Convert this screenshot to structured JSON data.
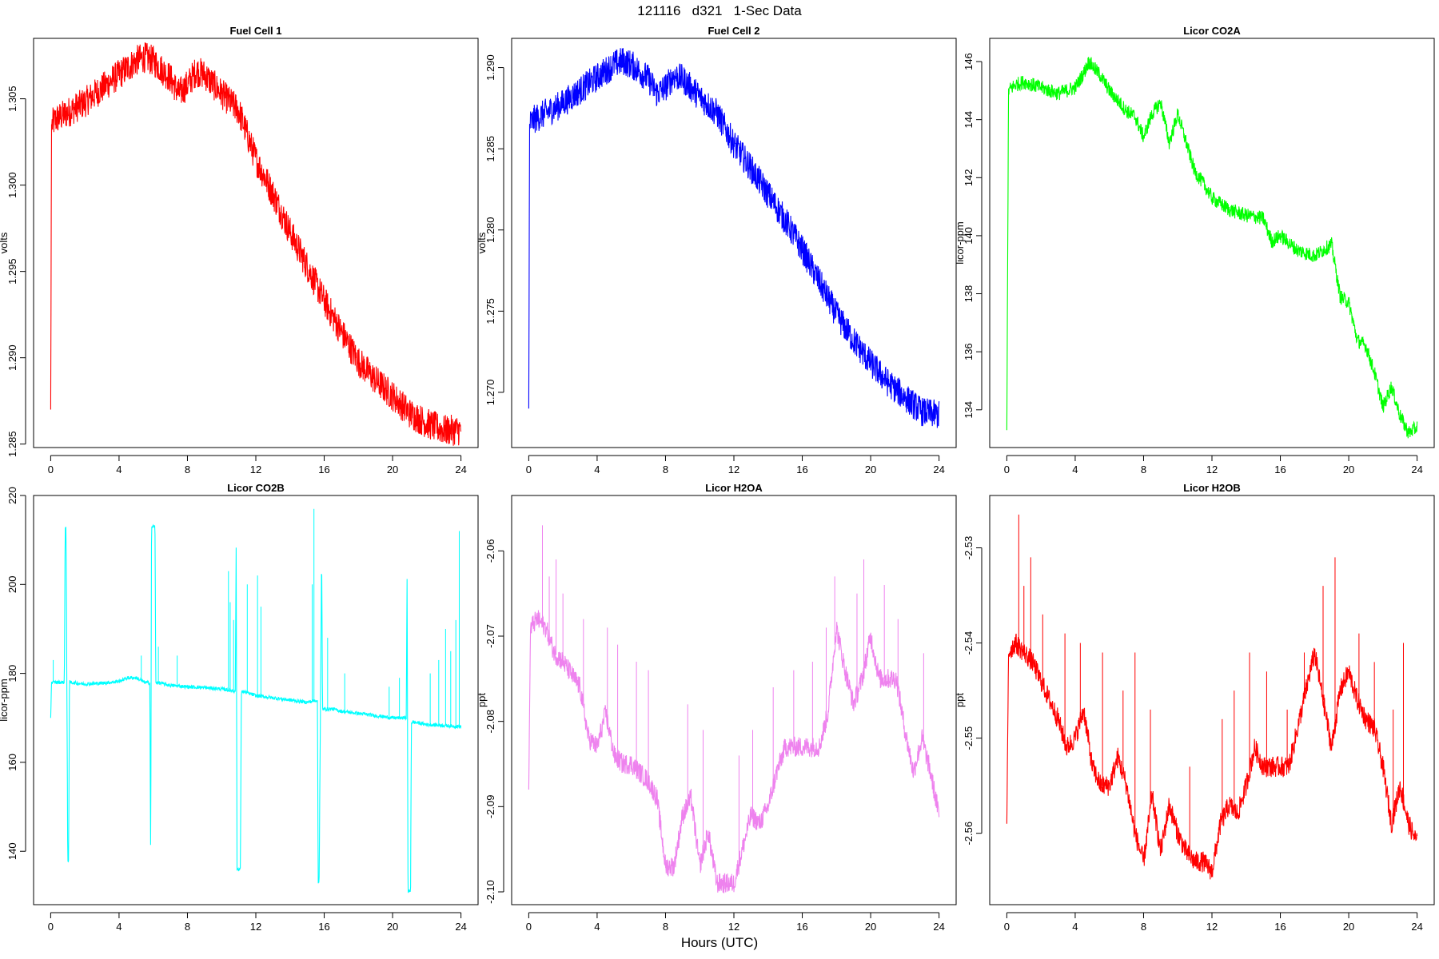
{
  "figure": {
    "title": "121116   d321   1-Sec Data",
    "xlabel": "Hours (UTC)"
  },
  "chart_data": [
    {
      "type": "line",
      "title": "Fuel Cell 1",
      "xlabel": "",
      "ylabel": "volts",
      "color": "#ff0000",
      "xlim": [
        -1,
        25
      ],
      "ylim": [
        1.2848,
        1.3085
      ],
      "xticks": [
        0,
        4,
        8,
        12,
        16,
        20,
        24
      ],
      "yticks": [
        1.285,
        1.29,
        1.295,
        1.3,
        1.305
      ],
      "ytick_labels": [
        "1.285",
        "1.290",
        "1.295",
        "1.300",
        "1.305"
      ],
      "noise": 0.0009,
      "series": [
        {
          "x": [
            0,
            0.05,
            0.3,
            1,
            2,
            3,
            4,
            5,
            5.5,
            6,
            7,
            7.5,
            8,
            8.5,
            9,
            10,
            11,
            12,
            13,
            14,
            15,
            16,
            17,
            18,
            19,
            20,
            21,
            22,
            23,
            24
          ],
          "y": [
            1.287,
            1.3035,
            1.3038,
            1.3042,
            1.3048,
            1.3056,
            1.3064,
            1.3072,
            1.3074,
            1.3072,
            1.3062,
            1.3053,
            1.3058,
            1.3066,
            1.3064,
            1.3053,
            1.3043,
            1.3015,
            1.2995,
            1.2973,
            1.2953,
            1.2933,
            1.2915,
            1.2898,
            1.2887,
            1.2878,
            1.2868,
            1.2862,
            1.2858,
            1.2858
          ]
        }
      ]
    },
    {
      "type": "line",
      "title": "Fuel Cell 2",
      "xlabel": "",
      "ylabel": "volts",
      "color": "#0000ff",
      "xlim": [
        -1,
        25
      ],
      "ylim": [
        1.2666,
        1.2918
      ],
      "xticks": [
        0,
        4,
        8,
        12,
        16,
        20,
        24
      ],
      "yticks": [
        1.27,
        1.275,
        1.28,
        1.285,
        1.29
      ],
      "ytick_labels": [
        "1.270",
        "1.275",
        "1.280",
        "1.285",
        "1.290"
      ],
      "noise": 0.0009,
      "series": [
        {
          "x": [
            0,
            0.05,
            0.3,
            1,
            2,
            3,
            4,
            5,
            5.5,
            6,
            7,
            7.5,
            8,
            8.5,
            9,
            10,
            11,
            12,
            13,
            14,
            15,
            16,
            17,
            18,
            19,
            20,
            21,
            22,
            23,
            24
          ],
          "y": [
            1.269,
            1.2865,
            1.2868,
            1.2872,
            1.2878,
            1.2886,
            1.2894,
            1.2902,
            1.2904,
            1.2902,
            1.2893,
            1.2884,
            1.2888,
            1.2895,
            1.2893,
            1.2882,
            1.2872,
            1.2853,
            1.2838,
            1.2822,
            1.2806,
            1.2788,
            1.2768,
            1.2748,
            1.2732,
            1.2718,
            1.2706,
            1.2697,
            1.2688,
            1.2686
          ]
        }
      ]
    },
    {
      "type": "line",
      "title": "Licor CO2A",
      "xlabel": "",
      "ylabel": "licor-ppm",
      "color": "#00ff00",
      "xlim": [
        -1,
        25
      ],
      "ylim": [
        132.7,
        146.8
      ],
      "xticks": [
        0,
        4,
        8,
        12,
        16,
        20,
        24
      ],
      "yticks": [
        134,
        136,
        138,
        140,
        142,
        144,
        146
      ],
      "ytick_labels": [
        "134",
        "136",
        "138",
        "140",
        "142",
        "144",
        "146"
      ],
      "noise": 0.25,
      "series": [
        {
          "x": [
            0,
            0.1,
            0.5,
            1,
            2,
            3,
            4,
            4.5,
            4.8,
            5.5,
            6,
            7,
            7.5,
            8,
            8.5,
            9,
            9.5,
            10,
            11,
            11.5,
            12,
            13,
            14,
            15,
            15.5,
            16,
            17,
            18,
            19,
            19.5,
            20,
            20.5,
            21,
            21.5,
            22,
            22.5,
            23,
            23.5,
            24
          ],
          "y": [
            133.3,
            145,
            145.2,
            145.3,
            145.1,
            144.9,
            145.1,
            145.6,
            146,
            145.5,
            145,
            144.3,
            144.1,
            143.4,
            144.2,
            144.6,
            143.2,
            144.2,
            142.2,
            141.8,
            141.3,
            140.9,
            140.7,
            140.6,
            139.8,
            140,
            139.5,
            139.3,
            139.7,
            137.9,
            137.7,
            136.4,
            136.2,
            135.3,
            134.1,
            134.8,
            133.8,
            133.2,
            133.4
          ]
        }
      ]
    },
    {
      "type": "line",
      "title": "Licor CO2B",
      "xlabel": "",
      "ylabel": "licor-ppm",
      "color": "#00ffff",
      "xlim": [
        -1,
        25
      ],
      "ylim": [
        128,
        220
      ],
      "xticks": [
        0,
        4,
        8,
        12,
        16,
        20,
        24
      ],
      "yticks": [
        140,
        160,
        180,
        200,
        220
      ],
      "ytick_labels": [
        "140",
        "160",
        "180",
        "200",
        "220"
      ],
      "noise": 0.4,
      "series": [
        {
          "x": [
            0,
            0.05,
            0.3,
            0.8,
            0.85,
            0.9,
            1.0,
            1.05,
            1.1,
            2,
            3,
            4,
            4.5,
            5,
            5.5,
            5.8,
            5.85,
            5.9,
            6.1,
            6.15,
            6.2,
            7,
            8,
            9,
            10,
            10.8,
            10.85,
            10.9,
            11.1,
            11.15,
            11.2,
            12,
            13,
            14,
            15,
            15.6,
            15.65,
            15.7,
            15.85,
            15.9,
            16.5,
            17,
            18,
            19,
            20,
            20.8,
            20.85,
            20.9,
            21.05,
            21.1,
            21.3,
            22,
            23,
            24
          ],
          "y": [
            170,
            178,
            178,
            178,
            213,
            213,
            138,
            138,
            178,
            177.6,
            177.8,
            178.2,
            179,
            179,
            178,
            177.8,
            138,
            213,
            213,
            178,
            178,
            177.3,
            177,
            176.8,
            176.5,
            176,
            210,
            136,
            136,
            175,
            176,
            175,
            174.5,
            174,
            173.5,
            174,
            133,
            133,
            207,
            172,
            172,
            171.5,
            171,
            170.5,
            170,
            170,
            204,
            131,
            131,
            169,
            169,
            168.5,
            168.3,
            168
          ]
        }
      ],
      "spikes": [
        {
          "x": 0.15,
          "y": 183
        },
        {
          "x": 5.3,
          "y": 184
        },
        {
          "x": 6.3,
          "y": 186
        },
        {
          "x": 7.4,
          "y": 184
        },
        {
          "x": 10.4,
          "y": 203
        },
        {
          "x": 10.5,
          "y": 196
        },
        {
          "x": 10.7,
          "y": 192
        },
        {
          "x": 11.5,
          "y": 200
        },
        {
          "x": 12.1,
          "y": 202
        },
        {
          "x": 12.3,
          "y": 195
        },
        {
          "x": 15.4,
          "y": 217
        },
        {
          "x": 15.3,
          "y": 200
        },
        {
          "x": 16.2,
          "y": 188
        },
        {
          "x": 17.2,
          "y": 180
        },
        {
          "x": 19.8,
          "y": 177
        },
        {
          "x": 20.4,
          "y": 179
        },
        {
          "x": 22.2,
          "y": 180
        },
        {
          "x": 22.7,
          "y": 183
        },
        {
          "x": 23.1,
          "y": 190
        },
        {
          "x": 23.4,
          "y": 185
        },
        {
          "x": 23.9,
          "y": 212
        },
        {
          "x": 23.7,
          "y": 192
        }
      ]
    },
    {
      "type": "line",
      "title": "Licor H2OA",
      "xlabel": "",
      "ylabel": "ppt",
      "color": "#ee82ee",
      "xlim": [
        -1,
        25
      ],
      "ylim": [
        -2.1015,
        -2.0535
      ],
      "xticks": [
        0,
        4,
        8,
        12,
        16,
        20,
        24
      ],
      "yticks": [
        -2.1,
        -2.09,
        -2.08,
        -2.07,
        -2.06
      ],
      "ytick_labels": [
        "-2.10",
        "-2.09",
        "-2.08",
        "-2.07",
        "-2.06"
      ],
      "noise": 0.0012,
      "series": [
        {
          "x": [
            0,
            0.1,
            0.5,
            1,
            1.5,
            2,
            3,
            3.5,
            4,
            4.5,
            5,
            5.5,
            6,
            7,
            7.5,
            8,
            8.5,
            9,
            9.5,
            10,
            10.5,
            11,
            11.5,
            12,
            12.5,
            13,
            13.5,
            14,
            14.5,
            15,
            16,
            16.5,
            17,
            17.5,
            18,
            18.5,
            19,
            19.5,
            20,
            20.5,
            21,
            21.5,
            22,
            22.5,
            23,
            23.5,
            24
          ],
          "y": [
            -2.088,
            -2.069,
            -2.068,
            -2.069,
            -2.072,
            -2.073,
            -2.076,
            -2.082,
            -2.083,
            -2.079,
            -2.084,
            -2.085,
            -2.085,
            -2.087,
            -2.089,
            -2.097,
            -2.097,
            -2.091,
            -2.089,
            -2.097,
            -2.093,
            -2.099,
            -2.099,
            -2.099,
            -2.095,
            -2.091,
            -2.092,
            -2.09,
            -2.086,
            -2.083,
            -2.083,
            -2.083,
            -2.083,
            -2.079,
            -2.069,
            -2.074,
            -2.078,
            -2.075,
            -2.07,
            -2.075,
            -2.075,
            -2.075,
            -2.081,
            -2.086,
            -2.082,
            -2.086,
            -2.091
          ]
        }
      ],
      "spikes": [
        {
          "x": 0.8,
          "y": -2.057
        },
        {
          "x": 1.2,
          "y": -2.063
        },
        {
          "x": 1.6,
          "y": -2.061
        },
        {
          "x": 2.0,
          "y": -2.065
        },
        {
          "x": 3.2,
          "y": -2.068
        },
        {
          "x": 4.6,
          "y": -2.069
        },
        {
          "x": 5.2,
          "y": -2.071
        },
        {
          "x": 6.3,
          "y": -2.073
        },
        {
          "x": 7.0,
          "y": -2.074
        },
        {
          "x": 9.3,
          "y": -2.078
        },
        {
          "x": 10.2,
          "y": -2.081
        },
        {
          "x": 12.3,
          "y": -2.084
        },
        {
          "x": 13.1,
          "y": -2.081
        },
        {
          "x": 14.3,
          "y": -2.076
        },
        {
          "x": 15.5,
          "y": -2.074
        },
        {
          "x": 16.6,
          "y": -2.073
        },
        {
          "x": 17.4,
          "y": -2.069
        },
        {
          "x": 17.9,
          "y": -2.063
        },
        {
          "x": 19.2,
          "y": -2.065
        },
        {
          "x": 19.6,
          "y": -2.061
        },
        {
          "x": 20.8,
          "y": -2.064
        },
        {
          "x": 21.6,
          "y": -2.068
        },
        {
          "x": 23.1,
          "y": -2.072
        }
      ]
    },
    {
      "type": "line",
      "title": "Licor H2OB",
      "xlabel": "",
      "ylabel": "ppt",
      "color": "#ff0000",
      "xlim": [
        -1,
        25
      ],
      "ylim": [
        -2.5675,
        -2.5245
      ],
      "xticks": [
        0,
        4,
        8,
        12,
        16,
        20,
        24
      ],
      "yticks": [
        -2.56,
        -2.55,
        -2.54,
        -2.53
      ],
      "ytick_labels": [
        "-2.56",
        "-2.55",
        "-2.54",
        "-2.53"
      ],
      "noise": 0.0011,
      "series": [
        {
          "x": [
            0,
            0.1,
            0.5,
            1,
            1.5,
            2,
            2.5,
            3,
            3.5,
            4,
            4.5,
            5,
            5.5,
            6,
            6.5,
            7,
            7.5,
            8,
            8.5,
            9,
            9.5,
            10,
            10.5,
            11,
            11.5,
            12,
            12.5,
            13,
            13.5,
            14,
            14.5,
            15,
            16,
            16.5,
            17,
            17.5,
            18,
            18.5,
            19,
            19.5,
            20,
            20.5,
            21,
            21.5,
            22,
            22.5,
            23,
            23.5,
            24
          ],
          "y": [
            -2.559,
            -2.541,
            -2.54,
            -2.541,
            -2.542,
            -2.544,
            -2.546,
            -2.548,
            -2.551,
            -2.55,
            -2.547,
            -2.553,
            -2.555,
            -2.555,
            -2.552,
            -2.555,
            -2.56,
            -2.563,
            -2.556,
            -2.562,
            -2.557,
            -2.56,
            -2.562,
            -2.563,
            -2.563,
            -2.564,
            -2.559,
            -2.557,
            -2.558,
            -2.555,
            -2.551,
            -2.553,
            -2.553,
            -2.553,
            -2.549,
            -2.545,
            -2.541,
            -2.546,
            -2.551,
            -2.545,
            -2.543,
            -2.546,
            -2.548,
            -2.549,
            -2.553,
            -2.559,
            -2.555,
            -2.559,
            -2.561
          ]
        }
      ],
      "spikes": [
        {
          "x": 0.7,
          "y": -2.5265
        },
        {
          "x": 1.0,
          "y": -2.534
        },
        {
          "x": 1.4,
          "y": -2.531
        },
        {
          "x": 2.1,
          "y": -2.537
        },
        {
          "x": 3.4,
          "y": -2.539
        },
        {
          "x": 4.3,
          "y": -2.54
        },
        {
          "x": 5.6,
          "y": -2.541
        },
        {
          "x": 6.8,
          "y": -2.545
        },
        {
          "x": 7.5,
          "y": -2.541
        },
        {
          "x": 8.4,
          "y": -2.547
        },
        {
          "x": 10.7,
          "y": -2.553
        },
        {
          "x": 12.6,
          "y": -2.548
        },
        {
          "x": 13.3,
          "y": -2.545
        },
        {
          "x": 14.2,
          "y": -2.541
        },
        {
          "x": 15.2,
          "y": -2.543
        },
        {
          "x": 16.4,
          "y": -2.547
        },
        {
          "x": 17.4,
          "y": -2.541
        },
        {
          "x": 18.5,
          "y": -2.534
        },
        {
          "x": 19.2,
          "y": -2.531
        },
        {
          "x": 20.6,
          "y": -2.539
        },
        {
          "x": 21.5,
          "y": -2.542
        },
        {
          "x": 22.6,
          "y": -2.547
        },
        {
          "x": 23.2,
          "y": -2.54
        }
      ]
    }
  ]
}
